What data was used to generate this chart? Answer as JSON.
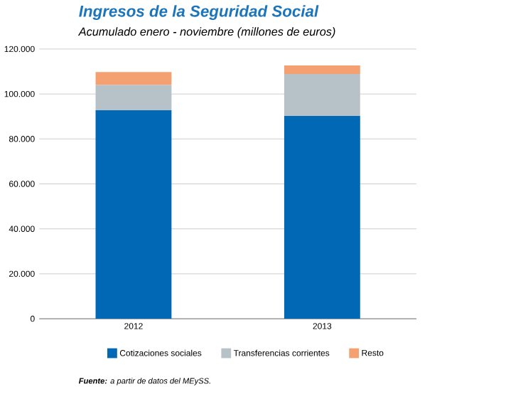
{
  "chart_data": {
    "type": "bar",
    "stacked": true,
    "title": "Ingresos de la Seguridad Social",
    "subtitle": "Acumulado enero - noviembre (millones de euros)",
    "categories": [
      "2012",
      "2013"
    ],
    "series": [
      {
        "name": "Cotizaciones sociales",
        "color": "#0068b5",
        "values": [
          92800,
          90200
        ]
      },
      {
        "name": "Transferencias corrientes",
        "color": "#b7c2c8",
        "values": [
          11200,
          18700
        ]
      },
      {
        "name": "Resto",
        "color": "#f4a070",
        "values": [
          5800,
          3800
        ]
      }
    ],
    "ylim": [
      0,
      120000
    ],
    "yticks": [
      {
        "value": 0,
        "label": "0"
      },
      {
        "value": 20000,
        "label": "20.000"
      },
      {
        "value": 40000,
        "label": "40.000"
      },
      {
        "value": 60000,
        "label": "60.000"
      },
      {
        "value": 80000,
        "label": "80.000"
      },
      {
        "value": 100000,
        "label": "100.000"
      },
      {
        "value": 120000,
        "label": "120.000"
      }
    ],
    "grid": "y",
    "legend": "bottom",
    "annotations": [
      "**Fuente:** a partir de datos del MEySS."
    ]
  }
}
